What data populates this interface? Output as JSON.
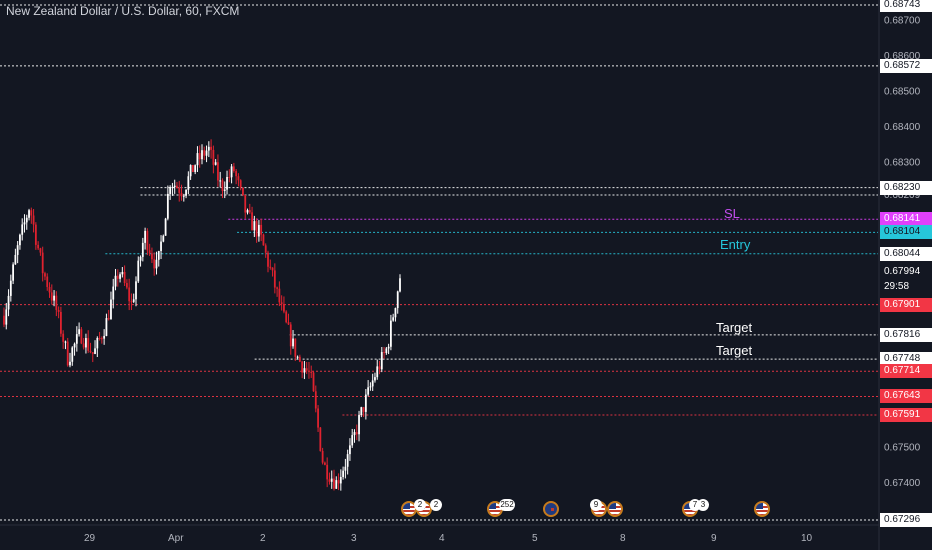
{
  "header": {
    "title": "New Zealand Dollar / U.S. Dollar, 60, FXCM"
  },
  "chart_data": {
    "type": "candlestick",
    "title": "New Zealand Dollar / U.S. Dollar, 60, FXCM",
    "ylim": [
      0.67296,
      0.68743
    ],
    "y_ticks": [
      "0.68700",
      "0.68600",
      "0.68500",
      "0.68400",
      "0.68300",
      "0.68209",
      "0.67500",
      "0.67400"
    ],
    "x_ticks": [
      "29",
      "Apr",
      "2",
      "3",
      "4",
      "5",
      "8",
      "9",
      "10"
    ],
    "price_tags": [
      {
        "label": "0.68743",
        "value": 0.68743,
        "bg": "#ffffff",
        "fg": "#131722"
      },
      {
        "label": "0.68572",
        "value": 0.68572,
        "bg": "#ffffff",
        "fg": "#131722"
      },
      {
        "label": "0.68230",
        "value": 0.6823,
        "bg": "#ffffff",
        "fg": "#131722"
      },
      {
        "label": "0.68141",
        "value": 0.68141,
        "bg": "#e040fb",
        "fg": "#ffffff"
      },
      {
        "label": "0.68104",
        "value": 0.68104,
        "bg": "#26c6da",
        "fg": "#131722"
      },
      {
        "label": "0.68044",
        "value": 0.68044,
        "bg": "#ffffff",
        "fg": "#131722"
      },
      {
        "label": "0.67994",
        "value": 0.67994,
        "bg": "#131722",
        "fg": "#ffffff"
      },
      {
        "label": "29:58",
        "value": 0.6795,
        "bg": "#131722",
        "fg": "#ffffff"
      },
      {
        "label": "0.67901",
        "value": 0.67901,
        "bg": "#f23645",
        "fg": "#ffffff"
      },
      {
        "label": "0.67816",
        "value": 0.67816,
        "bg": "#ffffff",
        "fg": "#131722"
      },
      {
        "label": "0.67748",
        "value": 0.67748,
        "bg": "#ffffff",
        "fg": "#131722"
      },
      {
        "label": "0.67714",
        "value": 0.67714,
        "bg": "#f23645",
        "fg": "#ffffff"
      },
      {
        "label": "0.67643",
        "value": 0.67643,
        "bg": "#f23645",
        "fg": "#ffffff"
      },
      {
        "label": "0.67591",
        "value": 0.67591,
        "bg": "#f23645",
        "fg": "#ffffff"
      },
      {
        "label": "0.67296",
        "value": 0.67296,
        "bg": "#ffffff",
        "fg": "#131722"
      }
    ],
    "levels": [
      {
        "value": 0.68743,
        "color": "#ffffff",
        "from": 0.0
      },
      {
        "value": 0.68572,
        "color": "#ffffff",
        "from": 0.0
      },
      {
        "value": 0.6823,
        "color": "#ffffff",
        "from": 0.16
      },
      {
        "value": 0.68209,
        "color": "#ffffff",
        "from": 0.16
      },
      {
        "value": 0.68141,
        "color": "#e040fb",
        "from": 0.26
      },
      {
        "value": 0.68104,
        "color": "#26c6da",
        "from": 0.27
      },
      {
        "value": 0.68044,
        "color": "#26c6da",
        "from": 0.12
      },
      {
        "value": 0.67901,
        "color": "#f23645",
        "from": 0.0
      },
      {
        "value": 0.67816,
        "color": "#ffffff",
        "from": 0.33
      },
      {
        "value": 0.67748,
        "color": "#ffffff",
        "from": 0.29
      },
      {
        "value": 0.67714,
        "color": "#f23645",
        "from": 0.0
      },
      {
        "value": 0.67643,
        "color": "#f23645",
        "from": 0.0
      },
      {
        "value": 0.67591,
        "color": "#f23645",
        "from": 0.39
      },
      {
        "value": 0.67296,
        "color": "#ffffff",
        "from": 0.0
      }
    ],
    "path": [
      0.6787,
      0.6805,
      0.6818,
      0.68,
      0.679,
      0.6775,
      0.6782,
      0.6776,
      0.6785,
      0.68,
      0.679,
      0.681,
      0.68,
      0.6825,
      0.6822,
      0.683,
      0.6834,
      0.6823,
      0.6828,
      0.6815,
      0.681,
      0.6798,
      0.6785,
      0.6775,
      0.677,
      0.6745,
      0.674,
      0.6748,
      0.676,
      0.677,
      0.6778,
      0.6798
    ]
  },
  "annotations": {
    "sl": "SL",
    "entry": "Entry",
    "target1": "Target",
    "target2": "Target"
  },
  "events": [
    {
      "flag": "us",
      "badge": "2"
    },
    {
      "flag": "us",
      "badge": "2"
    },
    {
      "flag": "us",
      "badge": "252"
    },
    {
      "flag": "nz",
      "badge": ""
    },
    {
      "flag": "us",
      "badge": "9"
    },
    {
      "flag": "us",
      "badge": ""
    },
    {
      "flag": "us",
      "badge": "7"
    },
    {
      "flag": "us",
      "badge": "3"
    },
    {
      "flag": "us",
      "badge": ""
    }
  ]
}
